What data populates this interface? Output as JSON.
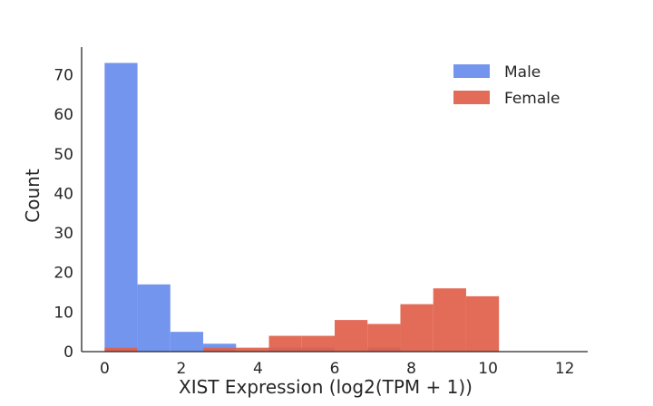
{
  "chart_data": {
    "type": "bar",
    "subtype": "histogram",
    "xlabel": "XIST Expression (log2(TPM + 1))",
    "ylabel": "Count",
    "xlim": [
      -0.6,
      12.6
    ],
    "ylim": [
      0,
      77
    ],
    "xticks": [
      0,
      2,
      4,
      6,
      8,
      10,
      12
    ],
    "yticks": [
      0,
      10,
      20,
      30,
      40,
      50,
      60,
      70
    ],
    "grid": false,
    "legend_position": "top-right",
    "bin_edges": [
      0,
      0.857,
      1.714,
      2.571,
      3.429,
      4.286,
      5.143,
      6.0,
      6.857,
      7.714,
      8.571,
      9.429,
      10.286
    ],
    "series": [
      {
        "name": "Male",
        "color": "#6d8fec",
        "opacity": 0.95,
        "values": [
          73,
          17,
          5,
          2,
          0,
          1,
          1,
          0,
          1,
          0,
          0,
          0
        ]
      },
      {
        "name": "Female",
        "color": "#e0604a",
        "opacity": 0.92,
        "values": [
          1,
          0,
          0,
          1,
          1,
          4,
          4,
          8,
          7,
          12,
          16,
          14
        ]
      }
    ]
  }
}
